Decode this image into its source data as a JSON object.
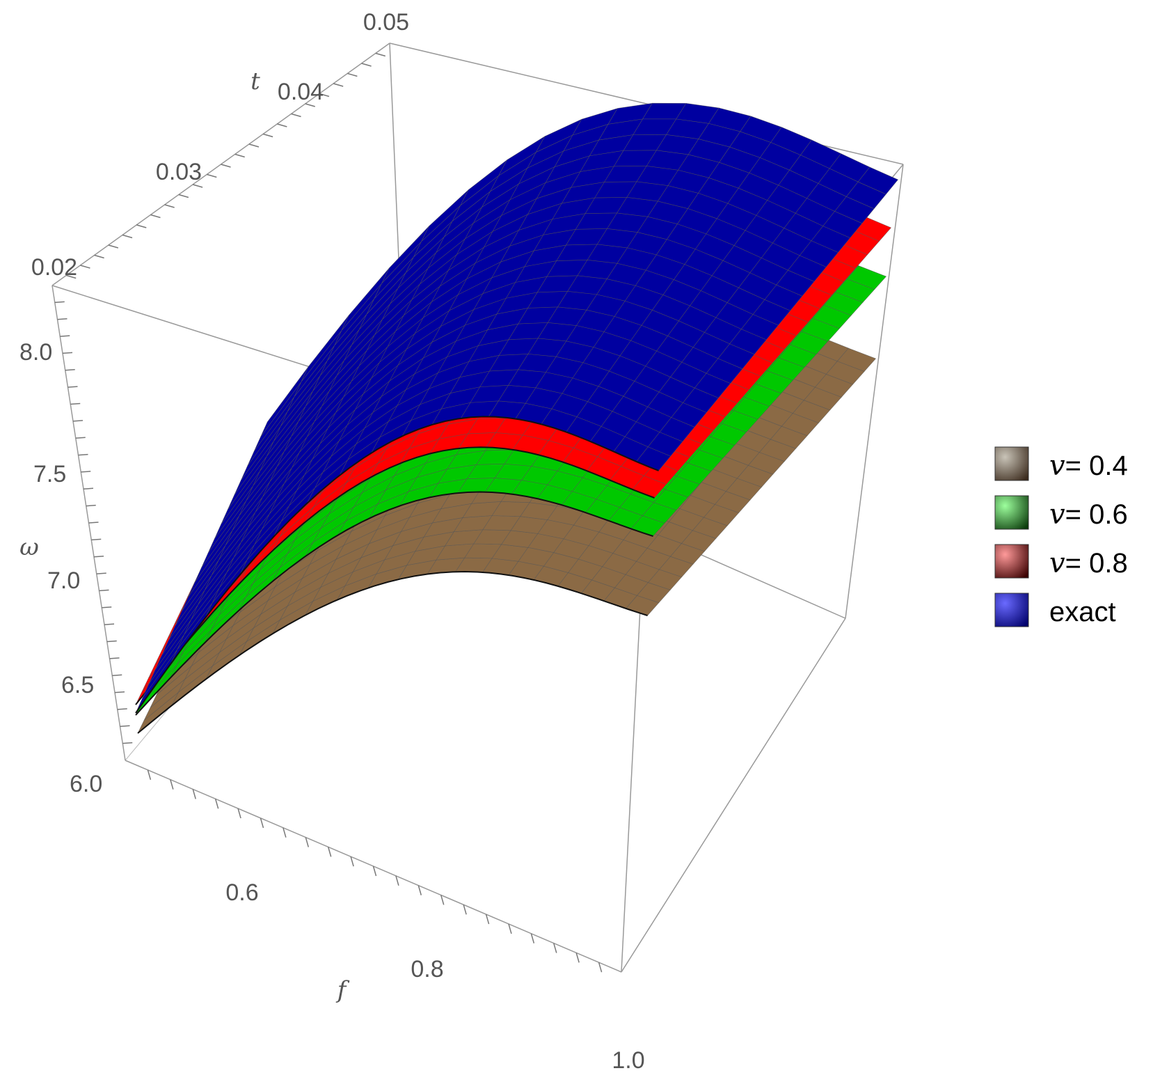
{
  "chart_data": {
    "type": "surface3d",
    "axes": {
      "f": {
        "label": "f",
        "range": [
          0.5,
          1.0
        ],
        "ticks": [
          "0.6",
          "0.8",
          "1.0"
        ]
      },
      "t": {
        "label": "t",
        "range": [
          0.01,
          0.05
        ],
        "ticks": [
          "0.02",
          "0.03",
          "0.04",
          "0.05"
        ]
      },
      "omega": {
        "label": "ω",
        "range": [
          5.95,
          8.2
        ],
        "ticks": [
          "6.0",
          "6.5",
          "7.0",
          "7.5",
          "8.0"
        ]
      }
    },
    "legend": {
      "placement": "right",
      "entries": [
        {
          "symbol": "v",
          "text": "= 0.4",
          "color": "#8B6A45"
        },
        {
          "symbol": "v",
          "text": "= 0.6",
          "color": "#00C800"
        },
        {
          "symbol": "v",
          "text": "= 0.8",
          "color": "#FF0000"
        },
        {
          "symbol": "",
          "text": "exact",
          "color": "#0000A0"
        }
      ]
    },
    "series": [
      {
        "name": "v= 0.4",
        "color": "#8B6A45",
        "omega_at_f": [
          [
            0.5,
            6.05
          ],
          [
            0.75,
            6.8
          ],
          [
            1.0,
            7.05
          ]
        ]
      },
      {
        "name": "v= 0.6",
        "color": "#00C800",
        "omega_at_f": [
          [
            0.5,
            6.1
          ],
          [
            0.75,
            7.0
          ],
          [
            1.0,
            7.35
          ]
        ]
      },
      {
        "name": "v= 0.8",
        "color": "#FF0000",
        "omega_at_f": [
          [
            0.5,
            6.15
          ],
          [
            0.75,
            7.15
          ],
          [
            1.0,
            7.55
          ]
        ]
      },
      {
        "name": "exact",
        "color": "#0000A0",
        "omega_at_f": [
          [
            0.5,
            6.15
          ],
          [
            0.75,
            7.3
          ],
          [
            1.0,
            7.8
          ]
        ]
      }
    ]
  }
}
